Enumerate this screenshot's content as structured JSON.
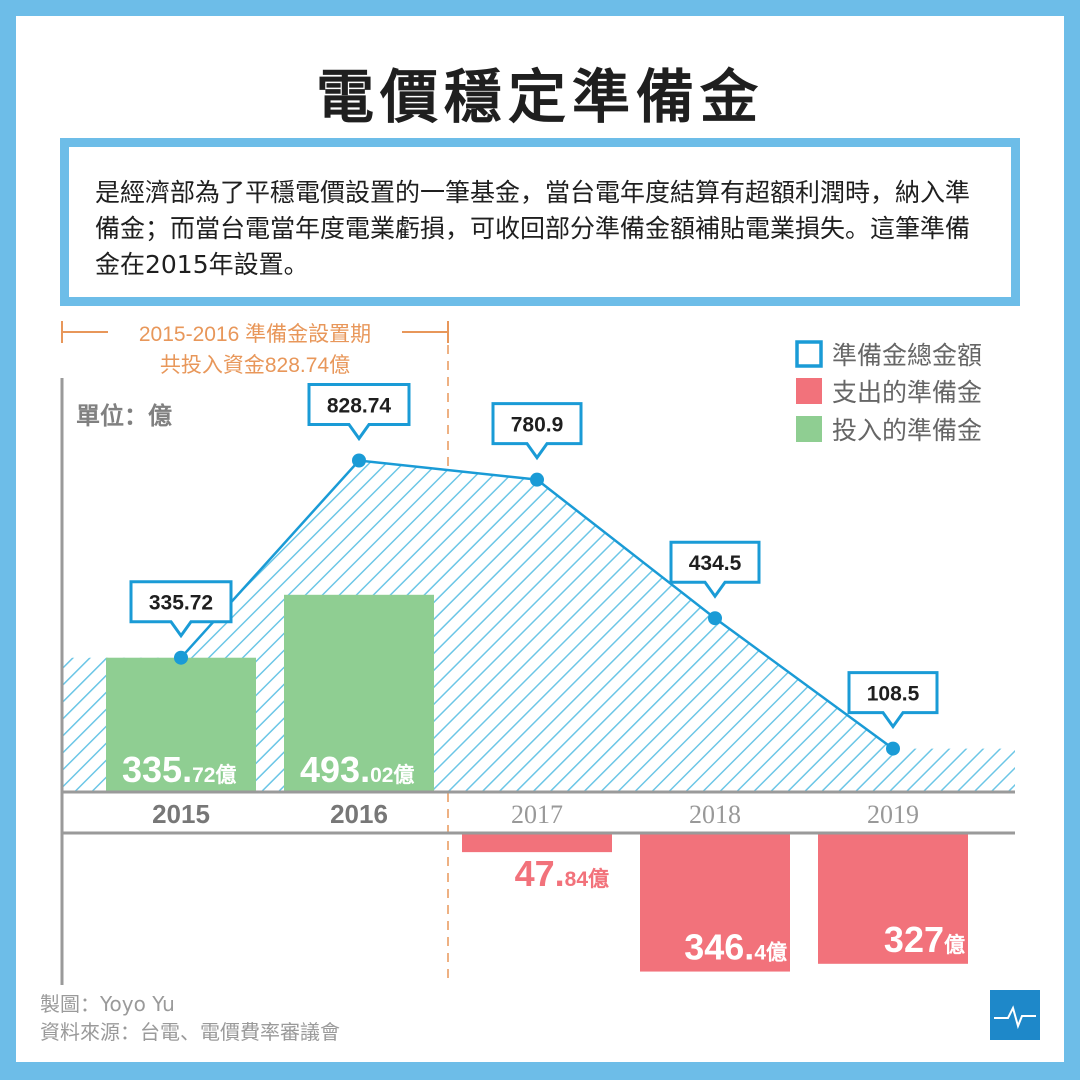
{
  "title": "電價穩定準備金",
  "description": "是經濟部為了平穩電價設置的一筆基金，當台電年度結算有超額利潤時，納入準備金；而當台電當年度電業虧損，可收回部分準備金額補貼電業損失。這筆準備金在2015年設置。",
  "period_annotation": {
    "line1": "2015-2016 準備金設置期",
    "line2": "共投入資金828.74億"
  },
  "unit_label": "單位：億",
  "legend": {
    "total": "準備金總金額",
    "spent": "支出的準備金",
    "invested": "投入的準備金"
  },
  "colors": {
    "total_line": "#1a9bd6",
    "hatch": "#6cc6e6",
    "spent": "#f2727b",
    "invested": "#8fce92",
    "period": "#e8975a"
  },
  "chart_data": {
    "type": "bar",
    "categories": [
      "2015",
      "2016",
      "2017",
      "2018",
      "2019"
    ],
    "series": [
      {
        "name": "準備金總金額",
        "type": "line",
        "values": [
          335.72,
          828.74,
          780.9,
          434.5,
          108.5
        ],
        "labels": [
          "335.72",
          "828.74",
          "780.9",
          "434.5",
          "108.5"
        ]
      },
      {
        "name": "投入的準備金",
        "type": "bar",
        "values": [
          335.72,
          493.02,
          null,
          null,
          null
        ],
        "label_main": [
          "335.",
          "493.",
          null,
          null,
          null
        ],
        "label_small": [
          "72億",
          "02億",
          null,
          null,
          null
        ]
      },
      {
        "name": "支出的準備金",
        "type": "bar",
        "values": [
          null,
          null,
          47.84,
          346.4,
          327
        ],
        "label_main": [
          null,
          null,
          "47.",
          "346.",
          "327"
        ],
        "label_small": [
          null,
          null,
          "84億",
          "4億",
          "億"
        ]
      }
    ],
    "grid": false,
    "legend_position": "top-right"
  },
  "credit": {
    "maker": "製圖：Yoyo Yu",
    "source": "資料來源：台電、電價費率審議會"
  },
  "logo_icon": "pulse-line-icon"
}
